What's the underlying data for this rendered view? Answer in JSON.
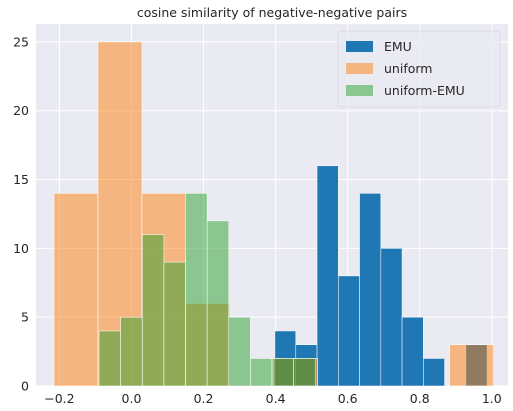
{
  "chart_data": {
    "type": "bar",
    "title": "cosine similarity of negative-negative pairs",
    "xlabel": "",
    "ylabel": "",
    "xlim": [
      -0.265,
      1.045
    ],
    "ylim": [
      0,
      26.3
    ],
    "xticks": [
      -0.2,
      0.0,
      0.2,
      0.4,
      0.6,
      0.8,
      1.0
    ],
    "xtick_labels": [
      "−0.2",
      "0.0",
      "0.2",
      "0.4",
      "0.6",
      "0.8",
      "1.0"
    ],
    "yticks": [
      0,
      5,
      10,
      15,
      20,
      25
    ],
    "ytick_labels": [
      "0",
      "5",
      "10",
      "15",
      "20",
      "25"
    ],
    "grid": true,
    "legend_position": "top-right",
    "series": [
      {
        "name": "EMU",
        "color": "#1f77b4",
        "alpha": 1.0,
        "bins": [
          [
            0.398,
            0.456,
            4
          ],
          [
            0.456,
            0.515,
            3
          ],
          [
            0.515,
            0.574,
            16
          ],
          [
            0.574,
            0.633,
            8
          ],
          [
            0.633,
            0.692,
            14
          ],
          [
            0.692,
            0.751,
            10
          ],
          [
            0.751,
            0.81,
            5
          ],
          [
            0.81,
            0.869,
            2
          ],
          [
            0.869,
            0.928,
            0
          ],
          [
            0.928,
            0.987,
            3
          ]
        ]
      },
      {
        "name": "uniform",
        "color": "#ff7f0e",
        "alpha": 0.5,
        "bins": [
          [
            -0.215,
            -0.093,
            14
          ],
          [
            -0.093,
            0.029,
            25
          ],
          [
            0.029,
            0.151,
            14
          ],
          [
            0.151,
            0.273,
            6
          ],
          [
            0.273,
            0.395,
            0
          ],
          [
            0.395,
            0.517,
            2
          ],
          [
            0.517,
            0.639,
            0
          ],
          [
            0.639,
            0.761,
            0
          ],
          [
            0.761,
            0.883,
            0
          ],
          [
            0.883,
            1.005,
            3
          ]
        ]
      },
      {
        "name": "uniform-EMU",
        "color": "#2ca02c",
        "alpha": 0.5,
        "bins": [
          [
            -0.09,
            -0.03,
            4
          ],
          [
            -0.03,
            0.03,
            5
          ],
          [
            0.03,
            0.09,
            11
          ],
          [
            0.09,
            0.15,
            9
          ],
          [
            0.15,
            0.21,
            14
          ],
          [
            0.21,
            0.27,
            12
          ],
          [
            0.27,
            0.33,
            5
          ],
          [
            0.33,
            0.39,
            2
          ],
          [
            0.39,
            0.45,
            2
          ],
          [
            0.45,
            0.51,
            2
          ]
        ]
      }
    ]
  }
}
